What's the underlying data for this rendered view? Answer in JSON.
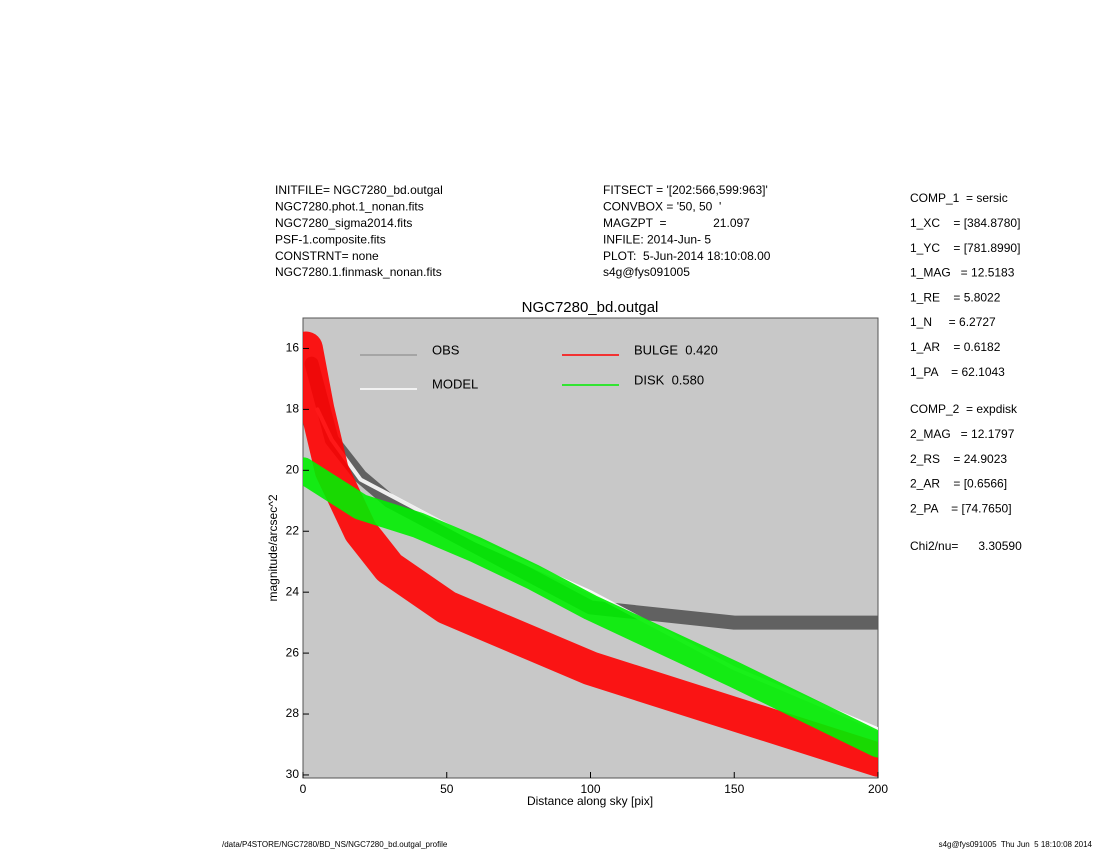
{
  "header": {
    "left": [
      "INITFILE= NGC7280_bd.outgal",
      "NGC7280.phot.1_nonan.fits",
      "NGC7280_sigma2014.fits",
      "PSF-1.composite.fits",
      "CONSTRNT= none",
      "NGC7280.1.finmask_nonan.fits"
    ],
    "middle": [
      "FITSECT = '[202:566,599:963]'",
      "CONVBOX = '50, 50  '",
      "MAGZPT  =              21.097",
      "INFILE: 2014-Jun- 5",
      "PLOT:  5-Jun-2014 18:10:08.00",
      "s4g@fys091005"
    ]
  },
  "parameters": {
    "comp1": [
      "COMP_1  = sersic",
      "1_XC    = [384.8780]",
      "1_YC    = [781.8990]",
      "1_MAG   = 12.5183",
      "1_RE    = 5.8022",
      "1_N     = 6.2727",
      "1_AR    = 0.6182",
      "1_PA    = 62.1043"
    ],
    "comp2": [
      "COMP_2  = expdisk",
      "2_MAG   = 12.1797",
      "2_RS    = 24.9023",
      "2_AR    = [0.6566]",
      "2_PA    = [74.7650]"
    ],
    "chi": "Chi2/nu=      3.30590"
  },
  "footer": {
    "left": "/data/P4STORE/NGC7280/BD_NS/NGC7280_bd.outgal_profile",
    "right": "s4g@fys091005  Thu Jun  5 18:10:08 2014"
  },
  "chart_data": {
    "type": "line",
    "title": "NGC7280_bd.outgal",
    "x_label": "Distance along sky [pix]",
    "y_label": "magnitude/arcsec^2",
    "xlim": [
      0,
      200
    ],
    "ylim": [
      15,
      30.1
    ],
    "y_inverted": true,
    "xticks": [
      0,
      50,
      100,
      150,
      200
    ],
    "yticks": [
      16,
      18,
      20,
      22,
      24,
      26,
      28,
      30
    ],
    "series": [
      {
        "name": "OBS",
        "color": "#555555",
        "legend_color": "#999999",
        "x": [
          3,
          10,
          20,
          30,
          50,
          70,
          100,
          150,
          200
        ],
        "values": [
          16.5,
          19,
          20.2,
          21,
          22,
          23,
          24.5,
          25,
          25
        ]
      },
      {
        "name": "MODEL",
        "color": "#ffffff",
        "x": [
          5,
          10,
          20,
          40,
          60,
          100,
          150,
          200
        ],
        "values": [
          18,
          19,
          20.3,
          21.3,
          22.3,
          24,
          26.5,
          28.5
        ]
      },
      {
        "name": "BULGE  0.420",
        "color": "#ff0000",
        "x": [
          1,
          5,
          10,
          20,
          30,
          50,
          80,
          100,
          150,
          200
        ],
        "values": [
          16,
          18,
          20,
          22,
          23.2,
          24.5,
          25.7,
          26.5,
          28,
          29.5
        ]
      },
      {
        "name": "DISK  0.580",
        "color": "#00ee00",
        "x": [
          0,
          10,
          20,
          40,
          60,
          80,
          100,
          150,
          200
        ],
        "values": [
          20,
          20.6,
          21.2,
          21.8,
          22.6,
          23.5,
          24.5,
          26.7,
          29
        ]
      }
    ]
  }
}
